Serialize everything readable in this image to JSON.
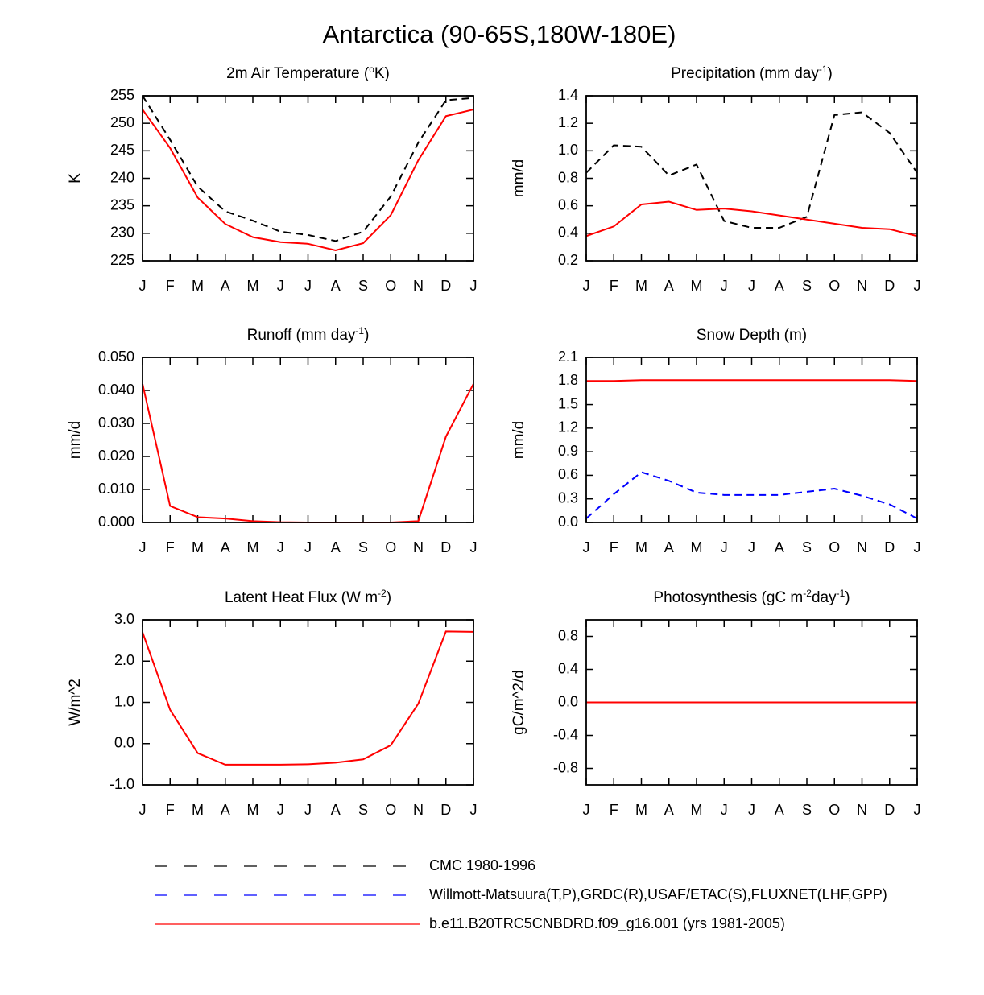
{
  "title": "Antarctica (90-65S,180W-180E)",
  "chart_data": [
    {
      "type": "line",
      "title": [
        "2m Air Temperature (",
        {
          "sup": "o"
        },
        "K)"
      ],
      "ylabel": "K",
      "categories": [
        "J",
        "F",
        "M",
        "A",
        "M",
        "J",
        "J",
        "A",
        "S",
        "O",
        "N",
        "D",
        "J"
      ],
      "ylim": [
        225,
        255
      ],
      "yticks": [
        225,
        230,
        235,
        240,
        245,
        250,
        255
      ],
      "series": [
        {
          "name": "CMC 1980-1996",
          "color": "#000000",
          "dash": true,
          "values": [
            255,
            247,
            238.5,
            234,
            232.3,
            230.3,
            229.7,
            228.6,
            230.3,
            236.7,
            246.5,
            254.2,
            254.6
          ]
        },
        {
          "name": "b.e11.B20TRC5CNBDRD.f09_g16.001 (yrs 1981-2005)",
          "color": "#ff0000",
          "dash": false,
          "values": [
            252.5,
            245.5,
            236.5,
            231.7,
            229.3,
            228.4,
            228.1,
            226.9,
            228.2,
            233.3,
            243.3,
            251.3,
            252.5
          ]
        }
      ]
    },
    {
      "type": "line",
      "title": [
        "Precipitation (mm day",
        {
          "sup": "-1"
        },
        ")"
      ],
      "ylabel": "mm/d",
      "categories": [
        "J",
        "F",
        "M",
        "A",
        "M",
        "J",
        "J",
        "A",
        "S",
        "O",
        "N",
        "D",
        "J"
      ],
      "ylim": [
        0.2,
        1.4
      ],
      "yticks": [
        0.2,
        0.4,
        0.6,
        0.8,
        {
          "value": 1,
          "label": "1.0"
        },
        1.2,
        1.4
      ],
      "series": [
        {
          "name": "CMC 1980-1996",
          "color": "#000000",
          "dash": true,
          "values": [
            0.84,
            1.04,
            1.03,
            0.82,
            0.9,
            0.49,
            0.44,
            0.44,
            0.52,
            1.26,
            1.28,
            1.13,
            0.84
          ]
        },
        {
          "name": "b.e11.B20TRC5CNBDRD.f09_g16.001 (yrs 1981-2005)",
          "color": "#ff0000",
          "dash": false,
          "values": [
            0.38,
            0.45,
            0.61,
            0.63,
            0.57,
            0.58,
            0.56,
            0.53,
            0.5,
            0.47,
            0.44,
            0.43,
            0.38
          ]
        }
      ]
    },
    {
      "type": "line",
      "title": [
        "Runoff (mm day",
        {
          "sup": "-1"
        },
        ")"
      ],
      "ylabel": "mm/d",
      "categories": [
        "J",
        "F",
        "M",
        "A",
        "M",
        "J",
        "J",
        "A",
        "S",
        "O",
        "N",
        "D",
        "J"
      ],
      "ylim": [
        0,
        0.05
      ],
      "yticks": [
        {
          "value": 0,
          "label": "0.000"
        },
        {
          "value": 0.01,
          "label": "0.010"
        },
        {
          "value": 0.02,
          "label": "0.020"
        },
        {
          "value": 0.03,
          "label": "0.030"
        },
        {
          "value": 0.04,
          "label": "0.040"
        },
        {
          "value": 0.05,
          "label": "0.050"
        }
      ],
      "series": [
        {
          "name": "b.e11.B20TRC5CNBDRD.f09_g16.001 (yrs 1981-2005)",
          "color": "#ff0000",
          "dash": false,
          "values": [
            0.042,
            0.005,
            0.0016,
            0.0012,
            0.0004,
            0.0001,
            0,
            0,
            0,
            0,
            0.0004,
            0.026,
            0.042
          ]
        }
      ]
    },
    {
      "type": "line",
      "title": [
        "Snow Depth (m)"
      ],
      "ylabel": "mm/d",
      "categories": [
        "J",
        "F",
        "M",
        "A",
        "M",
        "J",
        "J",
        "A",
        "S",
        "O",
        "N",
        "D",
        "J"
      ],
      "ylim": [
        0,
        2.1
      ],
      "yticks": [
        {
          "value": 0,
          "label": "0.0"
        },
        0.3,
        0.6,
        0.9,
        1.2,
        1.5,
        1.8,
        2.1
      ],
      "series": [
        {
          "name": "Willmott-Matsuura(T,P),GRDC(R),USAF/ETAC(S),FLUXNET(LHF,GPP)",
          "color": "#0000ff",
          "dash": true,
          "values": [
            0.05,
            0.36,
            0.64,
            0.53,
            0.38,
            0.35,
            0.35,
            0.35,
            0.39,
            0.43,
            0.34,
            0.23,
            0.05
          ]
        },
        {
          "name": "b.e11.B20TRC5CNBDRD.f09_g16.001 (yrs 1981-2005)",
          "color": "#ff0000",
          "dash": false,
          "values": [
            1.8,
            1.8,
            1.81,
            1.81,
            1.81,
            1.81,
            1.81,
            1.81,
            1.81,
            1.81,
            1.81,
            1.81,
            1.8
          ]
        }
      ]
    },
    {
      "type": "line",
      "title": [
        "Latent Heat Flux (W m",
        {
          "sup": "-2"
        },
        ")"
      ],
      "ylabel": "W/m^2",
      "categories": [
        "J",
        "F",
        "M",
        "A",
        "M",
        "J",
        "J",
        "A",
        "S",
        "O",
        "N",
        "D",
        "J"
      ],
      "ylim": [
        -1,
        3
      ],
      "yticks": [
        {
          "value": -1,
          "label": "-1.0"
        },
        {
          "value": 0,
          "label": "0.0"
        },
        {
          "value": 1,
          "label": "1.0"
        },
        {
          "value": 2,
          "label": "2.0"
        },
        {
          "value": 3,
          "label": "3.0"
        }
      ],
      "series": [
        {
          "name": "b.e11.B20TRC5CNBDRD.f09_g16.001 (yrs 1981-2005)",
          "color": "#ff0000",
          "dash": false,
          "values": [
            2.7,
            0.82,
            -0.23,
            -0.51,
            -0.51,
            -0.51,
            -0.5,
            -0.46,
            -0.38,
            -0.04,
            0.97,
            2.72,
            2.71
          ]
        }
      ]
    },
    {
      "type": "line",
      "title": [
        "Photosynthesis (gC m",
        {
          "sup": "-2"
        },
        "day",
        {
          "sup": "-1"
        },
        ")"
      ],
      "ylabel": "gC/m^2/d",
      "categories": [
        "J",
        "F",
        "M",
        "A",
        "M",
        "J",
        "J",
        "A",
        "S",
        "O",
        "N",
        "D",
        "J"
      ],
      "ylim": [
        -1,
        1
      ],
      "yticks": [
        -0.8,
        -0.4,
        {
          "value": 0,
          "label": "0.0"
        },
        0.4,
        0.8
      ],
      "series": [
        {
          "name": "b.e11.B20TRC5CNBDRD.f09_g16.001 (yrs 1981-2005)",
          "color": "#ff0000",
          "dash": false,
          "values": [
            0,
            0,
            0,
            0,
            0,
            0,
            0,
            0,
            0,
            0,
            0,
            0,
            0
          ]
        }
      ]
    }
  ],
  "legend": [
    {
      "name": "CMC 1980-1996",
      "color": "#000000",
      "dash": true
    },
    {
      "name": "Willmott-Matsuura(T,P),GRDC(R),USAF/ETAC(S),FLUXNET(LHF,GPP)",
      "color": "#0000ff",
      "dash": true
    },
    {
      "name": "b.e11.B20TRC5CNBDRD.f09_g16.001 (yrs 1981-2005)",
      "color": "#ff0000",
      "dash": false
    }
  ]
}
